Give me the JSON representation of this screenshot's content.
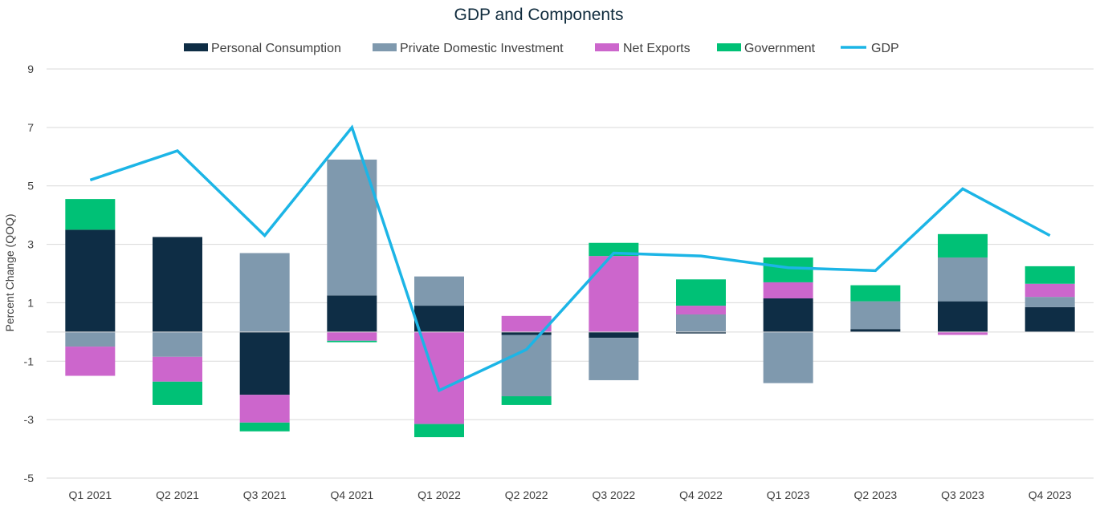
{
  "chart_data": {
    "type": "bar",
    "title": "GDP and Components",
    "xlabel": "",
    "ylabel": "Percent Change (QOQ)",
    "ylim": [
      -5,
      9
    ],
    "yticks": [
      9,
      7,
      5,
      3,
      1,
      -1,
      -3,
      -5
    ],
    "grid": true,
    "legend_position": "top",
    "categories": [
      "Q1 2021",
      "Q2 2021",
      "Q3 2021",
      "Q4 2021",
      "Q1 2022",
      "Q2 2022",
      "Q3 2022",
      "Q4 2022",
      "Q1 2023",
      "Q2 2023",
      "Q3 2023",
      "Q4 2023"
    ],
    "series": [
      {
        "name": "Personal Consumption",
        "kind": "stacked-bar",
        "color": "#0e2d45",
        "values": [
          3.5,
          3.25,
          -2.15,
          1.25,
          0.9,
          -0.1,
          -0.2,
          -0.05,
          1.15,
          0.1,
          1.05,
          0.85
        ]
      },
      {
        "name": "Private Domestic Investment",
        "kind": "stacked-bar",
        "color": "#7f99ae",
        "values": [
          -0.5,
          -0.85,
          2.7,
          4.65,
          1.0,
          -2.1,
          -1.45,
          0.6,
          -1.75,
          0.95,
          1.5,
          0.35
        ]
      },
      {
        "name": "Net Exports",
        "kind": "stacked-bar",
        "color": "#cc66cc",
        "values": [
          -1.0,
          -0.85,
          -0.95,
          -0.3,
          -3.15,
          0.55,
          2.6,
          0.3,
          0.55,
          0.0,
          -0.1,
          0.45
        ]
      },
      {
        "name": "Government",
        "kind": "stacked-bar",
        "color": "#00c176",
        "values": [
          1.05,
          -0.8,
          -0.3,
          -0.05,
          -0.45,
          -0.3,
          0.45,
          0.9,
          0.85,
          0.55,
          0.8,
          0.6
        ]
      },
      {
        "name": "GDP",
        "kind": "line",
        "color": "#1cb5e6",
        "values": [
          5.2,
          6.2,
          3.3,
          7.0,
          -2.0,
          -0.6,
          2.7,
          2.6,
          2.2,
          2.1,
          4.9,
          3.3
        ]
      }
    ]
  }
}
